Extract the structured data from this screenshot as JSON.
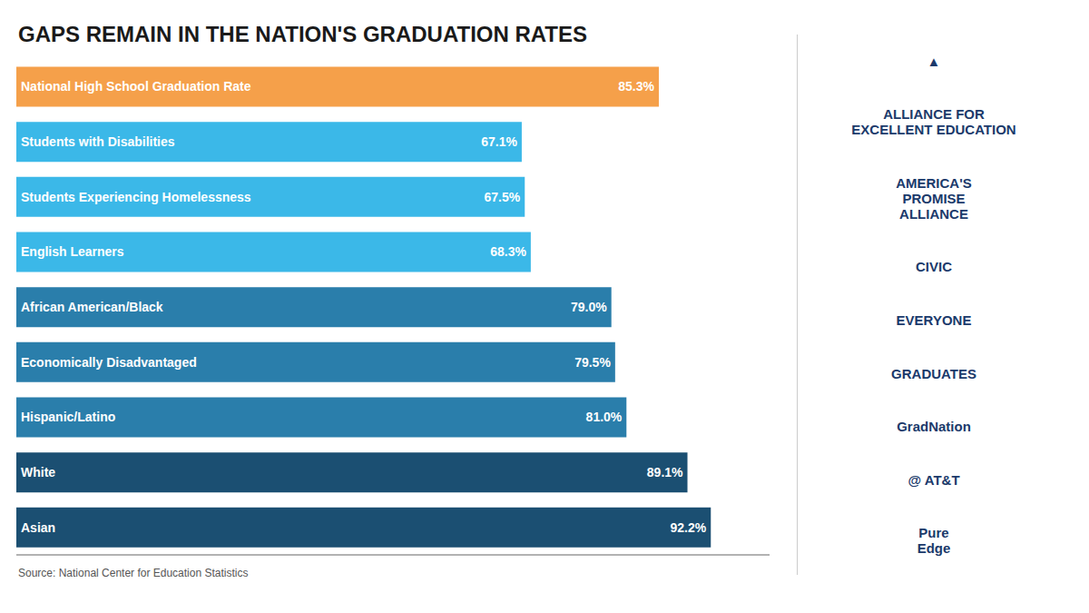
{
  "chart_data": {
    "type": "bar",
    "title": "GAPS REMAIN IN THE NATION'S GRADUATION RATES",
    "orientation": "horizontal",
    "categories": [
      "National High School Graduation Rate",
      "Students with Disabilities",
      "Students Experiencing Homelessness",
      "English Learners",
      "African American/Black",
      "Economically Disadvantaged",
      "Hispanic/Latino",
      "White",
      "Asian"
    ],
    "values": [
      85.3,
      67.1,
      67.5,
      68.3,
      79.0,
      79.5,
      81.0,
      89.1,
      92.2
    ],
    "value_labels": [
      "85.3%",
      "67.1%",
      "67.5%",
      "68.3%",
      "79.0%",
      "79.5%",
      "81.0%",
      "89.1%",
      "92.2%"
    ],
    "colors": [
      "#F5A04A",
      "#3BB8E8",
      "#3BB8E8",
      "#3BB8E8",
      "#2A7EAB",
      "#2A7EAB",
      "#2A7EAB",
      "#1B4F72",
      "#1B4F72"
    ],
    "xlim": [
      0,
      100
    ],
    "grid": false,
    "data_labels": true,
    "tick_labels": false,
    "annotations": [
      "Source: National Center for Education Statistics",
      "▲",
      "ALLIANCE FOR\nEXCELLENT EDUCATION",
      "AMERICA'S\nPROMISE\nALLIANCE",
      "CIVIC",
      "EVERYONE",
      "GRADUATES",
      "GradNation",
      "@ AT&T",
      "Pure\nEdge"
    ]
  }
}
